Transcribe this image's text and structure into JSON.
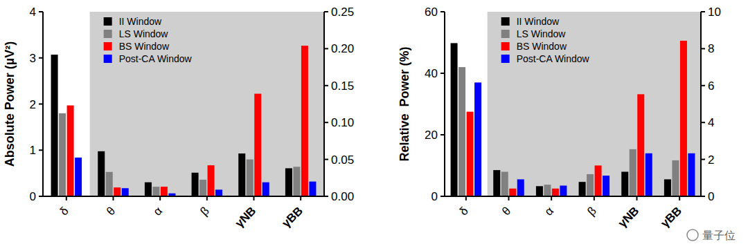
{
  "chart_data": [
    {
      "type": "bar",
      "y_label": "Absolute Power (µV²)",
      "categories": [
        "δ",
        "θ",
        "α",
        "β",
        "γNB",
        "γBB"
      ],
      "ylim": [
        0,
        4
      ],
      "yticks": [
        0,
        1,
        2,
        3,
        4
      ],
      "y2lim": [
        0,
        0.25
      ],
      "y2ticks": [
        {
          "value": 0,
          "label": "0.00"
        },
        {
          "value": 0.05,
          "label": "0.05"
        },
        {
          "value": 0.1,
          "label": "0.10"
        },
        {
          "value": 0.15,
          "label": "0.15"
        },
        {
          "value": 0.2,
          "label": "0.20"
        },
        {
          "value": 0.25,
          "label": "0.25"
        }
      ],
      "legend": "upper left",
      "series": [
        {
          "name": "II Window",
          "color": "#000000",
          "values": [
            3.07,
            null,
            null,
            null,
            null,
            null
          ]
        },
        {
          "name": "LS Window",
          "color": "#808080",
          "values": [
            1.8,
            null,
            null,
            null,
            null,
            null
          ]
        },
        {
          "name": "BS Window",
          "color": "#ff0000",
          "values": [
            1.97,
            null,
            null,
            null,
            null,
            null
          ]
        },
        {
          "name": "Post-CA Window",
          "color": "#0000ff",
          "values": [
            0.84,
            null,
            null,
            null,
            null,
            null
          ]
        },
        {
          "name": "II Window",
          "color": "#000000",
          "axis": "y2",
          "values": [
            null,
            0.061,
            0.019,
            0.032,
            0.058,
            0.038
          ]
        },
        {
          "name": "LS Window",
          "color": "#808080",
          "axis": "y2",
          "values": [
            null,
            0.033,
            0.013,
            0.0225,
            0.05,
            0.04
          ]
        },
        {
          "name": "BS Window",
          "color": "#ff0000",
          "axis": "y2",
          "values": [
            null,
            0.012,
            0.013,
            0.042,
            0.139,
            0.204
          ]
        },
        {
          "name": "Post-CA Window",
          "color": "#0000ff",
          "axis": "y2",
          "values": [
            null,
            0.011,
            0.004,
            0.009,
            0.019,
            0.02
          ]
        }
      ]
    },
    {
      "type": "bar",
      "y_label": "Relative  Power (%)",
      "categories": [
        "δ",
        "θ",
        "α",
        "β",
        "γNB",
        "γBB"
      ],
      "ylim": [
        0,
        60
      ],
      "yticks": [
        0,
        20,
        40,
        60
      ],
      "y2lim": [
        0,
        10
      ],
      "y2ticks": [
        0,
        2,
        4,
        6,
        8,
        10
      ],
      "legend": "upper left",
      "series": [
        {
          "name": "II Window",
          "color": "#000000",
          "values": [
            49.8,
            null,
            null,
            null,
            null,
            null
          ]
        },
        {
          "name": "LS Window",
          "color": "#808080",
          "values": [
            42,
            null,
            null,
            null,
            null,
            null
          ]
        },
        {
          "name": "BS Window",
          "color": "#ff0000",
          "values": [
            27.5,
            null,
            null,
            null,
            null,
            null
          ]
        },
        {
          "name": "Post-CA Window",
          "color": "#0000ff",
          "values": [
            37,
            null,
            null,
            null,
            null,
            null
          ]
        },
        {
          "name": "II Window",
          "color": "#000000",
          "axis": "y2",
          "values": [
            null,
            1.42,
            0.55,
            0.78,
            1.33,
            0.92
          ]
        },
        {
          "name": "LS Window",
          "color": "#808080",
          "axis": "y2",
          "values": [
            null,
            1.33,
            0.63,
            1.2,
            2.55,
            1.95
          ]
        },
        {
          "name": "BS Window",
          "color": "#ff0000",
          "axis": "y2",
          "values": [
            null,
            0.42,
            0.42,
            1.67,
            5.53,
            8.43
          ]
        },
        {
          "name": "Post-CA Window",
          "color": "#0000ff",
          "axis": "y2",
          "values": [
            null,
            0.92,
            0.58,
            1.12,
            2.33,
            2.33
          ]
        }
      ]
    }
  ],
  "watermark": "量子位"
}
